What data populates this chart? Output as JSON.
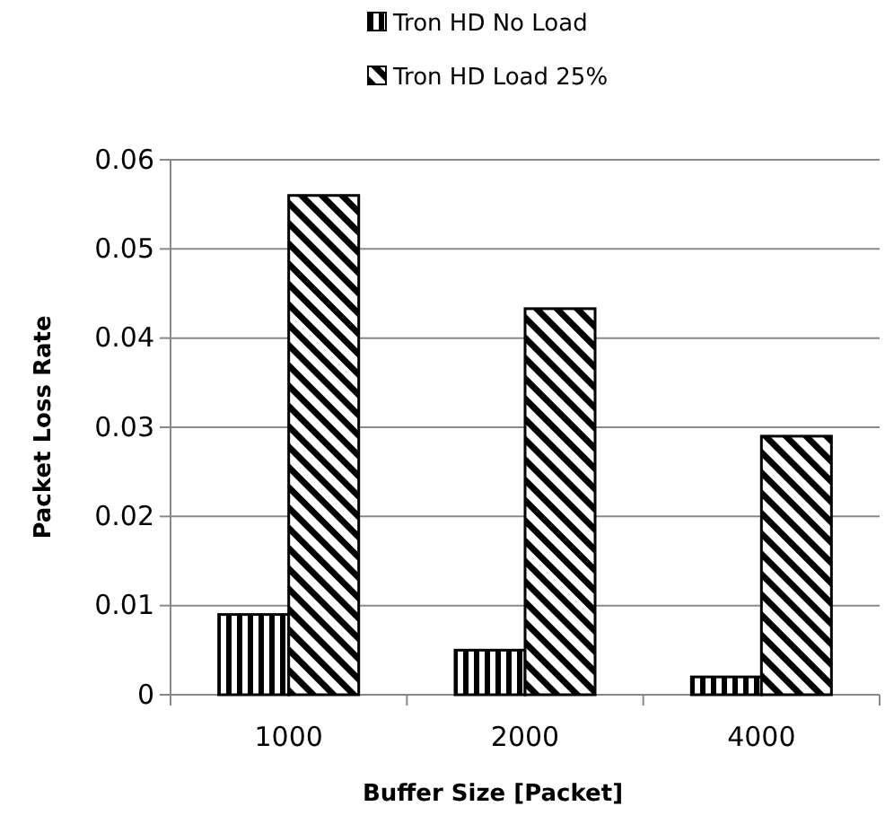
{
  "chart_data": {
    "type": "bar",
    "xlabel": "Buffer Size [Packet]",
    "ylabel": "Packet Loss Rate",
    "categories": [
      "1000",
      "2000",
      "4000"
    ],
    "series": [
      {
        "name": "Tron HD No Load",
        "color": "#000000",
        "values": [
          0.009,
          0.005,
          0.002
        ]
      },
      {
        "name": "Tron HD Load 25%",
        "color": "#000000",
        "values": [
          0.056,
          0.0433,
          0.029
        ]
      }
    ],
    "ylim": [
      0,
      0.06
    ],
    "yticks": [
      0,
      0.01,
      0.02,
      0.03,
      0.04,
      0.05,
      0.06
    ],
    "grid": "y",
    "legend": "top"
  }
}
